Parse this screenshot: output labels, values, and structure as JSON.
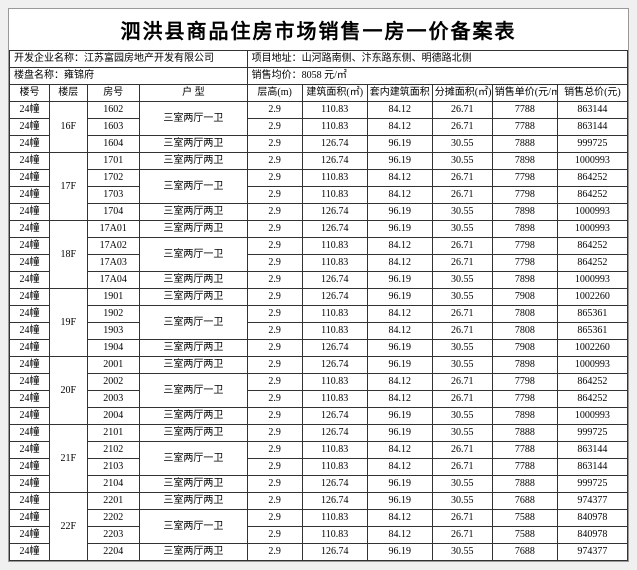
{
  "title": "泗洪县商品住房市场销售一房一价备案表",
  "info": {
    "dev_label": "开发企业名称：",
    "dev_value": "江苏富园房地产开发有限公司",
    "addr_label": "项目地址：",
    "addr_value": "山河路南侧、汴东路东侧、明德路北侧",
    "proj_label": "楼盘名称：",
    "proj_value": "雍锦府",
    "avg_label": "销售均价：",
    "avg_value": "8058 元/㎡"
  },
  "cols": [
    "楼号",
    "楼层",
    "房号",
    "户    型",
    "层高(m)",
    "建筑面积(㎡)",
    "套内建筑面积",
    "分摊面积(㎡)",
    "销售单价(元/㎡)",
    "销售总价(元)"
  ],
  "groups": [
    {
      "floor": "16F",
      "rows": [
        [
          "24幢",
          "1602",
          "三室两厅一卫",
          "2.9",
          "110.83",
          "84.12",
          "26.71",
          "7788",
          "863144"
        ],
        [
          "24幢",
          "1603",
          "",
          "2.9",
          "110.83",
          "84.12",
          "26.71",
          "7788",
          "863144"
        ],
        [
          "24幢",
          "1604",
          "三室两厅两卫",
          "2.9",
          "126.74",
          "96.19",
          "30.55",
          "7888",
          "999725"
        ]
      ]
    },
    {
      "floor": "17F",
      "rows": [
        [
          "24幢",
          "1701",
          "三室两厅两卫",
          "2.9",
          "126.74",
          "96.19",
          "30.55",
          "7898",
          "1000993"
        ],
        [
          "24幢",
          "1702",
          "三室两厅一卫",
          "2.9",
          "110.83",
          "84.12",
          "26.71",
          "7798",
          "864252"
        ],
        [
          "24幢",
          "1703",
          "",
          "2.9",
          "110.83",
          "84.12",
          "26.71",
          "7798",
          "864252"
        ],
        [
          "24幢",
          "1704",
          "三室两厅两卫",
          "2.9",
          "126.74",
          "96.19",
          "30.55",
          "7898",
          "1000993"
        ]
      ]
    },
    {
      "floor": "18F",
      "rows": [
        [
          "24幢",
          "17A01",
          "三室两厅两卫",
          "2.9",
          "126.74",
          "96.19",
          "30.55",
          "7898",
          "1000993"
        ],
        [
          "24幢",
          "17A02",
          "三室两厅一卫",
          "2.9",
          "110.83",
          "84.12",
          "26.71",
          "7798",
          "864252"
        ],
        [
          "24幢",
          "17A03",
          "",
          "2.9",
          "110.83",
          "84.12",
          "26.71",
          "7798",
          "864252"
        ],
        [
          "24幢",
          "17A04",
          "三室两厅两卫",
          "2.9",
          "126.74",
          "96.19",
          "30.55",
          "7898",
          "1000993"
        ]
      ]
    },
    {
      "floor": "19F",
      "rows": [
        [
          "24幢",
          "1901",
          "三室两厅两卫",
          "2.9",
          "126.74",
          "96.19",
          "30.55",
          "7908",
          "1002260"
        ],
        [
          "24幢",
          "1902",
          "三室两厅一卫",
          "2.9",
          "110.83",
          "84.12",
          "26.71",
          "7808",
          "865361"
        ],
        [
          "24幢",
          "1903",
          "",
          "2.9",
          "110.83",
          "84.12",
          "26.71",
          "7808",
          "865361"
        ],
        [
          "24幢",
          "1904",
          "三室两厅两卫",
          "2.9",
          "126.74",
          "96.19",
          "30.55",
          "7908",
          "1002260"
        ]
      ]
    },
    {
      "floor": "20F",
      "rows": [
        [
          "24幢",
          "2001",
          "三室两厅两卫",
          "2.9",
          "126.74",
          "96.19",
          "30.55",
          "7898",
          "1000993"
        ],
        [
          "24幢",
          "2002",
          "三室两厅一卫",
          "2.9",
          "110.83",
          "84.12",
          "26.71",
          "7798",
          "864252"
        ],
        [
          "24幢",
          "2003",
          "",
          "2.9",
          "110.83",
          "84.12",
          "26.71",
          "7798",
          "864252"
        ],
        [
          "24幢",
          "2004",
          "三室两厅两卫",
          "2.9",
          "126.74",
          "96.19",
          "30.55",
          "7898",
          "1000993"
        ]
      ]
    },
    {
      "floor": "21F",
      "rows": [
        [
          "24幢",
          "2101",
          "三室两厅两卫",
          "2.9",
          "126.74",
          "96.19",
          "30.55",
          "7888",
          "999725"
        ],
        [
          "24幢",
          "2102",
          "三室两厅一卫",
          "2.9",
          "110.83",
          "84.12",
          "26.71",
          "7788",
          "863144"
        ],
        [
          "24幢",
          "2103",
          "",
          "2.9",
          "110.83",
          "84.12",
          "26.71",
          "7788",
          "863144"
        ],
        [
          "24幢",
          "2104",
          "三室两厅两卫",
          "2.9",
          "126.74",
          "96.19",
          "30.55",
          "7888",
          "999725"
        ]
      ]
    },
    {
      "floor": "22F",
      "rows": [
        [
          "24幢",
          "2201",
          "三室两厅两卫",
          "2.9",
          "126.74",
          "96.19",
          "30.55",
          "7688",
          "974377"
        ],
        [
          "24幢",
          "2202",
          "三室两厅一卫",
          "2.9",
          "110.83",
          "84.12",
          "26.71",
          "7588",
          "840978"
        ],
        [
          "24幢",
          "2203",
          "",
          "2.9",
          "110.83",
          "84.12",
          "26.71",
          "7588",
          "840978"
        ],
        [
          "24幢",
          "2204",
          "三室两厅两卫",
          "2.9",
          "126.74",
          "96.19",
          "30.55",
          "7688",
          "974377"
        ]
      ]
    }
  ]
}
